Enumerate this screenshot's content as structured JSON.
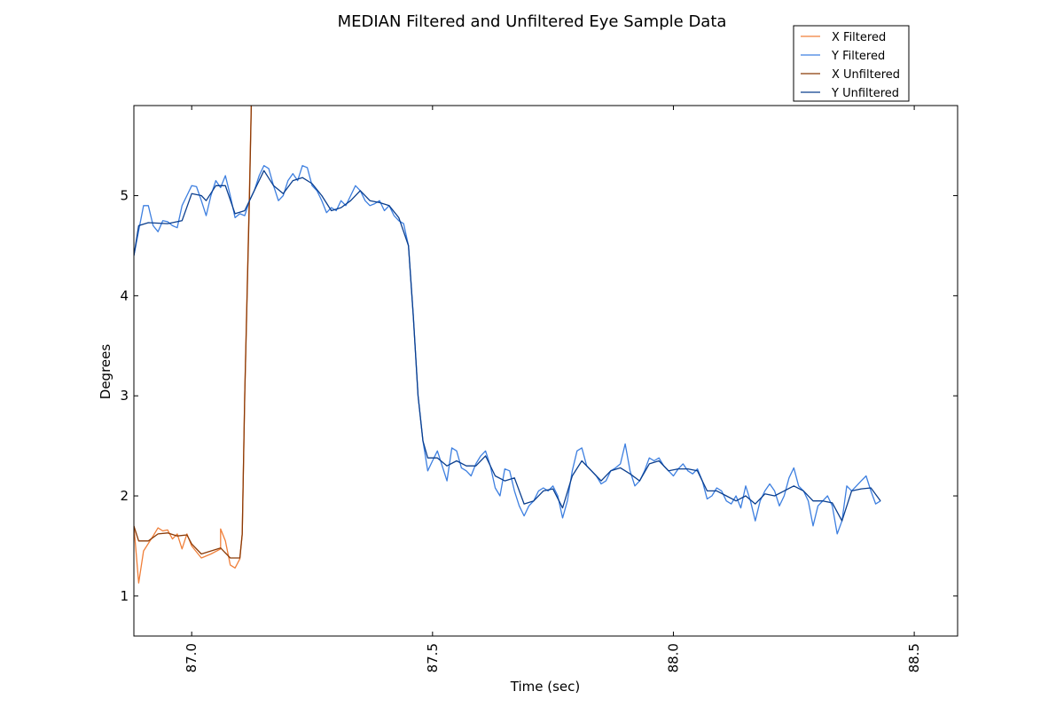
{
  "chart_data": {
    "type": "line",
    "title": "MEDIAN Filtered and Unfiltered Eye Sample Data",
    "xlabel": "Time (sec)",
    "ylabel": "Degrees",
    "xlim": [
      86.88,
      88.59
    ],
    "ylim": [
      0.6,
      5.9
    ],
    "x_ticks": [
      "87.0",
      "87.5",
      "88.0",
      "88.5"
    ],
    "x_tick_values": [
      87.0,
      87.5,
      88.0,
      88.5
    ],
    "y_ticks": [
      "1",
      "2",
      "3",
      "4",
      "5"
    ],
    "y_tick_values": [
      1,
      2,
      3,
      4,
      5
    ],
    "x_tick_rotation": "vertical",
    "grid": false,
    "legend_position": "top-right, outside above plot",
    "series": [
      {
        "name": "X Filtered",
        "color": "#f07f39",
        "points": [
          [
            86.88,
            1.7
          ],
          [
            86.89,
            1.13
          ],
          [
            86.9,
            1.45
          ],
          [
            86.92,
            1.6
          ],
          [
            86.93,
            1.68
          ],
          [
            86.94,
            1.65
          ],
          [
            86.95,
            1.66
          ],
          [
            86.96,
            1.57
          ],
          [
            86.97,
            1.62
          ],
          [
            86.98,
            1.47
          ],
          [
            86.99,
            1.62
          ],
          [
            87.0,
            1.5
          ],
          [
            87.02,
            1.38
          ],
          [
            87.04,
            1.42
          ],
          [
            87.06,
            1.47
          ],
          [
            87.06,
            1.67
          ],
          [
            87.07,
            1.55
          ],
          [
            87.08,
            1.31
          ],
          [
            87.09,
            1.28
          ],
          [
            87.1,
            1.37
          ],
          [
            87.105,
            1.62
          ],
          [
            87.11,
            3.0
          ],
          [
            87.12,
            5.1
          ],
          [
            87.125,
            6.2
          ]
        ]
      },
      {
        "name": "Y Filtered",
        "color": "#3d7fe0",
        "points": [
          [
            86.88,
            4.4
          ],
          [
            86.89,
            4.65
          ],
          [
            86.9,
            4.9
          ],
          [
            86.91,
            4.9
          ],
          [
            86.92,
            4.7
          ],
          [
            86.93,
            4.64
          ],
          [
            86.94,
            4.75
          ],
          [
            86.95,
            4.74
          ],
          [
            86.96,
            4.7
          ],
          [
            86.97,
            4.68
          ],
          [
            86.98,
            4.9
          ],
          [
            86.99,
            5.0
          ],
          [
            87.0,
            5.1
          ],
          [
            87.01,
            5.09
          ],
          [
            87.02,
            4.95
          ],
          [
            87.03,
            4.8
          ],
          [
            87.04,
            5.0
          ],
          [
            87.05,
            5.15
          ],
          [
            87.06,
            5.08
          ],
          [
            87.07,
            5.2
          ],
          [
            87.08,
            5.0
          ],
          [
            87.09,
            4.78
          ],
          [
            87.1,
            4.82
          ],
          [
            87.11,
            4.8
          ],
          [
            87.12,
            4.95
          ],
          [
            87.13,
            5.05
          ],
          [
            87.14,
            5.2
          ],
          [
            87.15,
            5.3
          ],
          [
            87.16,
            5.27
          ],
          [
            87.17,
            5.1
          ],
          [
            87.18,
            4.95
          ],
          [
            87.19,
            5.0
          ],
          [
            87.2,
            5.15
          ],
          [
            87.21,
            5.22
          ],
          [
            87.22,
            5.15
          ],
          [
            87.23,
            5.3
          ],
          [
            87.24,
            5.28
          ],
          [
            87.25,
            5.1
          ],
          [
            87.26,
            5.05
          ],
          [
            87.27,
            4.95
          ],
          [
            87.28,
            4.83
          ],
          [
            87.29,
            4.88
          ],
          [
            87.3,
            4.85
          ],
          [
            87.31,
            4.95
          ],
          [
            87.32,
            4.9
          ],
          [
            87.33,
            5.0
          ],
          [
            87.34,
            5.1
          ],
          [
            87.35,
            5.05
          ],
          [
            87.36,
            4.95
          ],
          [
            87.37,
            4.9
          ],
          [
            87.38,
            4.92
          ],
          [
            87.39,
            4.95
          ],
          [
            87.4,
            4.85
          ],
          [
            87.41,
            4.9
          ],
          [
            87.42,
            4.8
          ],
          [
            87.43,
            4.75
          ],
          [
            87.44,
            4.72
          ],
          [
            87.45,
            4.5
          ],
          [
            87.46,
            3.8
          ],
          [
            87.47,
            3.0
          ],
          [
            87.48,
            2.55
          ],
          [
            87.49,
            2.25
          ],
          [
            87.5,
            2.35
          ],
          [
            87.51,
            2.45
          ],
          [
            87.52,
            2.3
          ],
          [
            87.53,
            2.15
          ],
          [
            87.54,
            2.48
          ],
          [
            87.55,
            2.45
          ],
          [
            87.56,
            2.28
          ],
          [
            87.57,
            2.25
          ],
          [
            87.58,
            2.2
          ],
          [
            87.59,
            2.32
          ],
          [
            87.6,
            2.4
          ],
          [
            87.61,
            2.45
          ],
          [
            87.62,
            2.3
          ],
          [
            87.63,
            2.08
          ],
          [
            87.64,
            2.0
          ],
          [
            87.65,
            2.27
          ],
          [
            87.66,
            2.25
          ],
          [
            87.67,
            2.05
          ],
          [
            87.68,
            1.9
          ],
          [
            87.69,
            1.8
          ],
          [
            87.7,
            1.9
          ],
          [
            87.71,
            1.95
          ],
          [
            87.72,
            2.05
          ],
          [
            87.73,
            2.08
          ],
          [
            87.74,
            2.05
          ],
          [
            87.75,
            2.1
          ],
          [
            87.76,
            2.0
          ],
          [
            87.77,
            1.78
          ],
          [
            87.78,
            1.95
          ],
          [
            87.79,
            2.25
          ],
          [
            87.8,
            2.45
          ],
          [
            87.81,
            2.48
          ],
          [
            87.82,
            2.3
          ],
          [
            87.83,
            2.25
          ],
          [
            87.84,
            2.2
          ],
          [
            87.85,
            2.12
          ],
          [
            87.86,
            2.15
          ],
          [
            87.87,
            2.25
          ],
          [
            87.88,
            2.28
          ],
          [
            87.89,
            2.32
          ],
          [
            87.9,
            2.52
          ],
          [
            87.91,
            2.25
          ],
          [
            87.92,
            2.1
          ],
          [
            87.93,
            2.15
          ],
          [
            87.94,
            2.25
          ],
          [
            87.95,
            2.38
          ],
          [
            87.96,
            2.35
          ],
          [
            87.97,
            2.38
          ],
          [
            87.98,
            2.3
          ],
          [
            87.99,
            2.25
          ],
          [
            88.0,
            2.2
          ],
          [
            88.01,
            2.27
          ],
          [
            88.02,
            2.32
          ],
          [
            88.03,
            2.25
          ],
          [
            88.04,
            2.22
          ],
          [
            88.05,
            2.27
          ],
          [
            88.06,
            2.15
          ],
          [
            88.07,
            1.97
          ],
          [
            88.08,
            2.0
          ],
          [
            88.09,
            2.08
          ],
          [
            88.1,
            2.05
          ],
          [
            88.11,
            1.95
          ],
          [
            88.12,
            1.92
          ],
          [
            88.13,
            2.0
          ],
          [
            88.14,
            1.88
          ],
          [
            88.15,
            2.1
          ],
          [
            88.16,
            1.95
          ],
          [
            88.17,
            1.75
          ],
          [
            88.18,
            1.95
          ],
          [
            88.19,
            2.05
          ],
          [
            88.2,
            2.12
          ],
          [
            88.21,
            2.05
          ],
          [
            88.22,
            1.9
          ],
          [
            88.23,
            2.0
          ],
          [
            88.24,
            2.18
          ],
          [
            88.25,
            2.28
          ],
          [
            88.26,
            2.1
          ],
          [
            88.27,
            2.05
          ],
          [
            88.28,
            1.95
          ],
          [
            88.29,
            1.7
          ],
          [
            88.3,
            1.9
          ],
          [
            88.31,
            1.95
          ],
          [
            88.32,
            2.0
          ],
          [
            88.33,
            1.9
          ],
          [
            88.34,
            1.62
          ],
          [
            88.35,
            1.75
          ],
          [
            88.36,
            2.1
          ],
          [
            88.37,
            2.05
          ],
          [
            88.38,
            2.1
          ],
          [
            88.39,
            2.15
          ],
          [
            88.4,
            2.2
          ],
          [
            88.41,
            2.05
          ],
          [
            88.42,
            1.92
          ],
          [
            88.43,
            1.95
          ]
        ]
      },
      {
        "name": "X Unfiltered",
        "color": "#8b3a06",
        "points": [
          [
            86.88,
            1.7
          ],
          [
            86.89,
            1.55
          ],
          [
            86.91,
            1.55
          ],
          [
            86.93,
            1.62
          ],
          [
            86.95,
            1.63
          ],
          [
            86.97,
            1.6
          ],
          [
            86.99,
            1.61
          ],
          [
            87.0,
            1.52
          ],
          [
            87.02,
            1.42
          ],
          [
            87.04,
            1.45
          ],
          [
            87.06,
            1.48
          ],
          [
            87.08,
            1.38
          ],
          [
            87.1,
            1.38
          ],
          [
            87.105,
            1.62
          ],
          [
            87.11,
            3.0
          ],
          [
            87.12,
            5.0
          ],
          [
            87.125,
            6.2
          ]
        ]
      },
      {
        "name": "Y Unfiltered",
        "color": "#0a3e8e",
        "points": [
          [
            86.88,
            4.4
          ],
          [
            86.89,
            4.7
          ],
          [
            86.91,
            4.73
          ],
          [
            86.95,
            4.72
          ],
          [
            86.98,
            4.75
          ],
          [
            87.0,
            5.02
          ],
          [
            87.02,
            5.0
          ],
          [
            87.03,
            4.95
          ],
          [
            87.05,
            5.1
          ],
          [
            87.07,
            5.1
          ],
          [
            87.09,
            4.82
          ],
          [
            87.11,
            4.85
          ],
          [
            87.13,
            5.05
          ],
          [
            87.15,
            5.25
          ],
          [
            87.17,
            5.1
          ],
          [
            87.19,
            5.02
          ],
          [
            87.21,
            5.15
          ],
          [
            87.23,
            5.18
          ],
          [
            87.25,
            5.12
          ],
          [
            87.27,
            5.0
          ],
          [
            87.29,
            4.85
          ],
          [
            87.31,
            4.88
          ],
          [
            87.33,
            4.95
          ],
          [
            87.35,
            5.05
          ],
          [
            87.37,
            4.95
          ],
          [
            87.39,
            4.93
          ],
          [
            87.41,
            4.9
          ],
          [
            87.43,
            4.78
          ],
          [
            87.45,
            4.5
          ],
          [
            87.46,
            3.8
          ],
          [
            87.47,
            3.0
          ],
          [
            87.48,
            2.55
          ],
          [
            87.49,
            2.38
          ],
          [
            87.51,
            2.38
          ],
          [
            87.53,
            2.3
          ],
          [
            87.55,
            2.35
          ],
          [
            87.57,
            2.3
          ],
          [
            87.59,
            2.3
          ],
          [
            87.61,
            2.4
          ],
          [
            87.63,
            2.2
          ],
          [
            87.65,
            2.15
          ],
          [
            87.67,
            2.18
          ],
          [
            87.69,
            1.92
          ],
          [
            87.71,
            1.95
          ],
          [
            87.73,
            2.05
          ],
          [
            87.75,
            2.07
          ],
          [
            87.77,
            1.88
          ],
          [
            87.79,
            2.2
          ],
          [
            87.81,
            2.35
          ],
          [
            87.83,
            2.25
          ],
          [
            87.85,
            2.15
          ],
          [
            87.87,
            2.25
          ],
          [
            87.89,
            2.28
          ],
          [
            87.91,
            2.22
          ],
          [
            87.93,
            2.15
          ],
          [
            87.95,
            2.32
          ],
          [
            87.97,
            2.35
          ],
          [
            87.99,
            2.25
          ],
          [
            88.01,
            2.27
          ],
          [
            88.03,
            2.27
          ],
          [
            88.05,
            2.25
          ],
          [
            88.07,
            2.05
          ],
          [
            88.09,
            2.05
          ],
          [
            88.11,
            2.0
          ],
          [
            88.13,
            1.95
          ],
          [
            88.15,
            2.0
          ],
          [
            88.17,
            1.92
          ],
          [
            88.19,
            2.02
          ],
          [
            88.21,
            2.0
          ],
          [
            88.23,
            2.05
          ],
          [
            88.25,
            2.1
          ],
          [
            88.27,
            2.05
          ],
          [
            88.29,
            1.95
          ],
          [
            88.31,
            1.95
          ],
          [
            88.33,
            1.93
          ],
          [
            88.35,
            1.75
          ],
          [
            88.37,
            2.05
          ],
          [
            88.39,
            2.07
          ],
          [
            88.41,
            2.08
          ],
          [
            88.43,
            1.95
          ]
        ]
      }
    ]
  }
}
